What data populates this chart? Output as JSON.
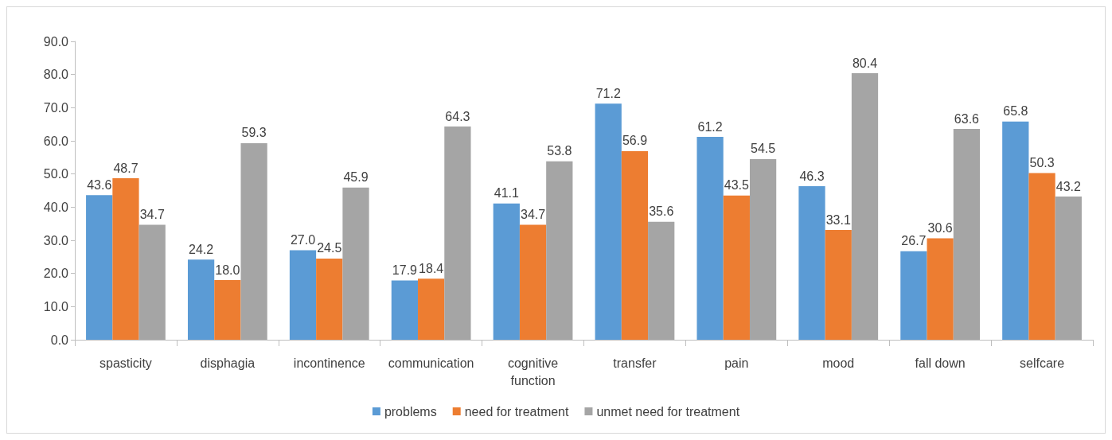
{
  "chart_data": {
    "type": "bar",
    "categories": [
      "spasticity",
      "disphagia",
      "incontinence",
      "communication",
      "cognitive function",
      "transfer",
      "pain",
      "mood",
      "fall down",
      "selfcare"
    ],
    "series": [
      {
        "name": "problems",
        "color": "#5b9bd5",
        "values": [
          43.6,
          24.2,
          27.0,
          17.9,
          41.1,
          71.2,
          61.2,
          46.3,
          26.7,
          65.8
        ],
        "value_labels": [
          "43.6",
          "24.2",
          "27.0",
          "17.9",
          "41.1",
          "71.2",
          "61.2",
          "46.3",
          "26.7",
          "65.8"
        ]
      },
      {
        "name": "need for treatment",
        "color": "#ed7d31",
        "values": [
          48.7,
          18.0,
          24.5,
          18.4,
          34.7,
          56.9,
          43.5,
          33.1,
          30.6,
          50.3
        ],
        "value_labels": [
          "48.7",
          "18.0",
          "24.5",
          "18.4",
          "34.7",
          "56.9",
          "43.5",
          "33.1",
          "30.6",
          "50.3"
        ]
      },
      {
        "name": "unmet need for treatment",
        "color": "#a5a5a5",
        "values": [
          34.7,
          59.3,
          45.9,
          64.3,
          53.8,
          35.6,
          54.5,
          80.4,
          63.6,
          43.2
        ],
        "value_labels": [
          "34.7",
          "59.3",
          "45.9",
          "64.3",
          "53.8",
          "35.6",
          "54.5",
          "80.4",
          "63.6",
          "43.2"
        ]
      }
    ],
    "ylim": [
      0,
      90
    ],
    "yticks": [
      {
        "value": 0,
        "label": "0.0"
      },
      {
        "value": 10,
        "label": "10.0"
      },
      {
        "value": 20,
        "label": "20.0"
      },
      {
        "value": 30,
        "label": "30.0"
      },
      {
        "value": 40,
        "label": "40.0"
      },
      {
        "value": 50,
        "label": "50.0"
      },
      {
        "value": 60,
        "label": "60.0"
      },
      {
        "value": 70,
        "label": "70.0"
      },
      {
        "value": 80,
        "label": "80.0"
      },
      {
        "value": 90,
        "label": "90.0"
      }
    ],
    "grid": false,
    "legend": "bottom"
  }
}
